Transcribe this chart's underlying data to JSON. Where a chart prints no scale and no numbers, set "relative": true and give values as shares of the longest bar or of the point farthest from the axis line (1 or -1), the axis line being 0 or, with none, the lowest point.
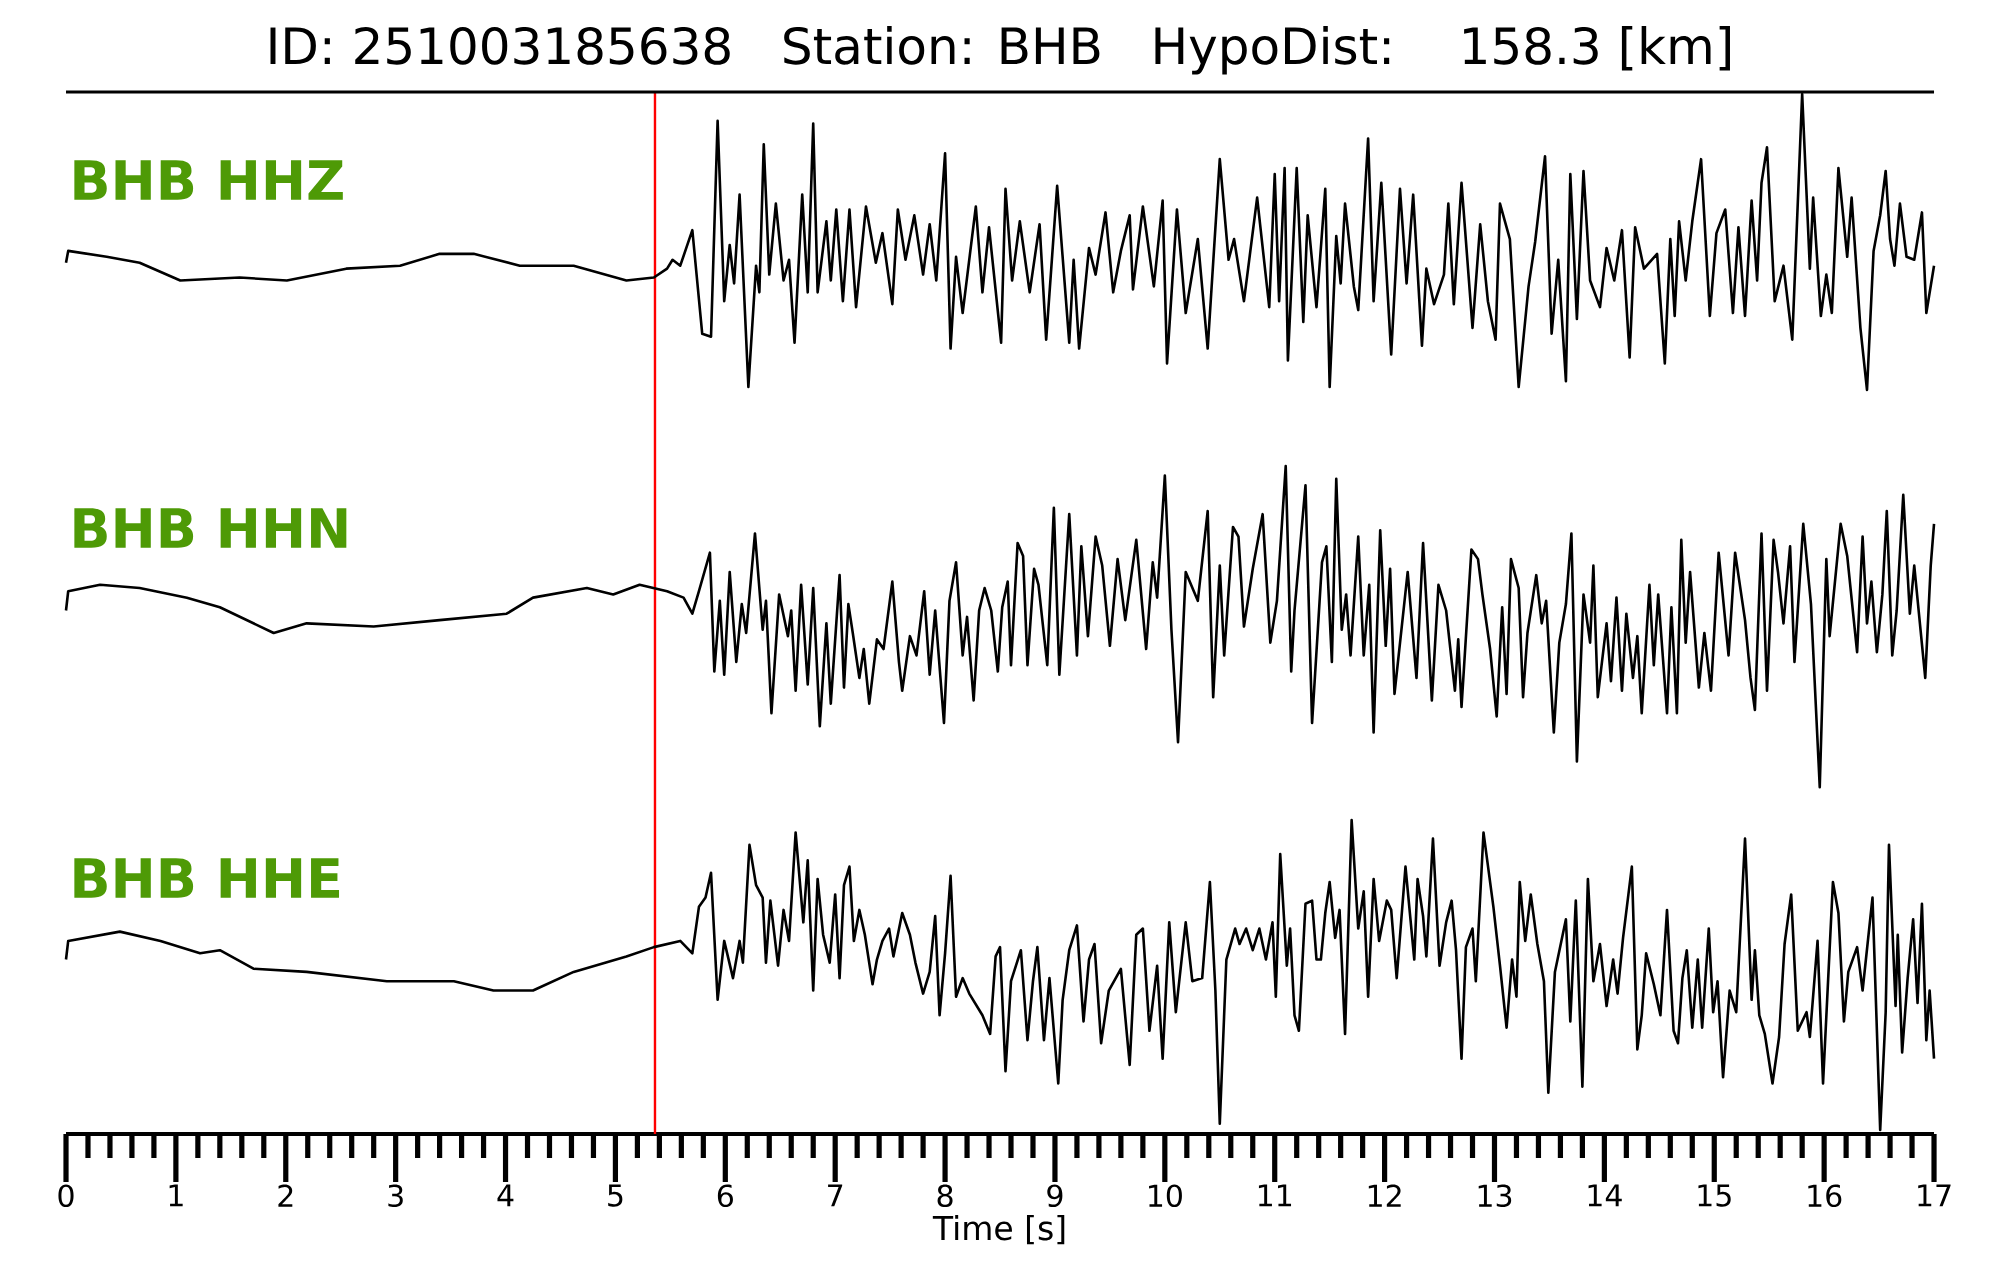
{
  "chart_data": [
    {
      "type": "line",
      "title": "ID: 251003185638   Station: BHB   HypoDist:   158.3 [km]",
      "relative": true,
      "xlim": [
        0,
        17
      ],
      "tick_labels": false,
      "ref_lines": [
        {
          "axis": "x",
          "value": 5.36,
          "color": "#ff0000"
        }
      ],
      "x": [
        0,
        0.02,
        0.37,
        0.67,
        1.04,
        1.58,
        2.01,
        2.55,
        3.04,
        3.4,
        3.71,
        4.13,
        4.62,
        5.1,
        5.35,
        5.47,
        5.52,
        5.59,
        5.7,
        5.79,
        5.87,
        5.93,
        5.99,
        6.04,
        6.08,
        6.13,
        6.21,
        6.28,
        6.31,
        6.35,
        6.4,
        6.46,
        6.53,
        6.58,
        6.63,
        6.7,
        6.75,
        6.8,
        6.84,
        6.92,
        6.96,
        7.01,
        7.07,
        7.13,
        7.19,
        7.28,
        7.37,
        7.43,
        7.52,
        7.57,
        7.64,
        7.72,
        7.8,
        7.86,
        7.92,
        8.0,
        8.05,
        8.1,
        8.16,
        8.28,
        8.34,
        8.4,
        8.51,
        8.55,
        8.61,
        8.68,
        8.77,
        8.86,
        8.92,
        9.02,
        9.13,
        9.17,
        9.22,
        9.31,
        9.37,
        9.46,
        9.53,
        9.6,
        9.68,
        9.71,
        9.8,
        9.9,
        9.98,
        10.02,
        10.11,
        10.19,
        10.3,
        10.39,
        10.5,
        10.58,
        10.63,
        10.72,
        10.84,
        10.95,
        11.0,
        11.04,
        11.09,
        11.12,
        11.2,
        11.26,
        11.3,
        11.38,
        11.46,
        11.5,
        11.56,
        11.6,
        11.64,
        11.72,
        11.76,
        11.85,
        11.9,
        11.97,
        12.06,
        12.14,
        12.2,
        12.26,
        12.34,
        12.38,
        12.45,
        12.54,
        12.58,
        12.63,
        12.7,
        12.8,
        12.87,
        12.94,
        13.01,
        13.05,
        13.14,
        13.22,
        13.31,
        13.37,
        13.46,
        13.52,
        13.58,
        13.65,
        13.69,
        13.75,
        13.81,
        13.87,
        13.96,
        14.02,
        14.09,
        14.16,
        14.23,
        14.28,
        14.36,
        14.48,
        14.55,
        14.6,
        14.64,
        14.68,
        14.74,
        14.8,
        14.88,
        14.96,
        15.02,
        15.1,
        15.17,
        15.22,
        15.28,
        15.34,
        15.39,
        15.43,
        15.48,
        15.55,
        15.63,
        15.71,
        15.8,
        15.87,
        15.9,
        15.97,
        16.02,
        16.07,
        16.13,
        16.21,
        16.25,
        16.33,
        16.39,
        16.45,
        16.51,
        16.56,
        16.6,
        16.64,
        16.69,
        16.75,
        16.82,
        16.89,
        16.93,
        17.0
      ],
      "series": [
        {
          "name": "BHB HHZ",
          "color": "#000000",
          "values": [
            0.43,
            0.47,
            0.45,
            0.43,
            0.37,
            0.38,
            0.37,
            0.41,
            0.42,
            0.46,
            0.46,
            0.42,
            0.42,
            0.37,
            0.38,
            0.41,
            0.44,
            0.42,
            0.54,
            0.19,
            0.18,
            0.91,
            0.3,
            0.49,
            0.36,
            0.66,
            0.01,
            0.42,
            0.33,
            0.83,
            0.39,
            0.63,
            0.37,
            0.44,
            0.16,
            0.66,
            0.33,
            0.9,
            0.33,
            0.57,
            0.37,
            0.61,
            0.3,
            0.61,
            0.28,
            0.62,
            0.43,
            0.53,
            0.29,
            0.61,
            0.44,
            0.59,
            0.39,
            0.56,
            0.37,
            0.8,
            0.14,
            0.45,
            0.26,
            0.62,
            0.33,
            0.55,
            0.16,
            0.68,
            0.37,
            0.57,
            0.33,
            0.56,
            0.17,
            0.69,
            0.16,
            0.44,
            0.14,
            0.48,
            0.39,
            0.6,
            0.33,
            0.47,
            0.59,
            0.34,
            0.62,
            0.35,
            0.64,
            0.09,
            0.61,
            0.26,
            0.51,
            0.14,
            0.78,
            0.44,
            0.51,
            0.3,
            0.65,
            0.28,
            0.73,
            0.3,
            0.75,
            0.1,
            0.75,
            0.23,
            0.59,
            0.28,
            0.68,
            0.01,
            0.52,
            0.36,
            0.63,
            0.35,
            0.27,
            0.85,
            0.3,
            0.7,
            0.12,
            0.68,
            0.36,
            0.66,
            0.15,
            0.41,
            0.29,
            0.39,
            0.63,
            0.29,
            0.7,
            0.21,
            0.56,
            0.3,
            0.17,
            0.63,
            0.51,
            0.01,
            0.35,
            0.5,
            0.79,
            0.19,
            0.44,
            0.03,
            0.73,
            0.24,
            0.74,
            0.37,
            0.28,
            0.48,
            0.37,
            0.54,
            0.11,
            0.55,
            0.41,
            0.46,
            0.09,
            0.51,
            0.25,
            0.57,
            0.37,
            0.57,
            0.78,
            0.25,
            0.53,
            0.61,
            0.26,
            0.55,
            0.25,
            0.64,
            0.37,
            0.7,
            0.82,
            0.3,
            0.42,
            0.17,
            1.0,
            0.41,
            0.65,
            0.25,
            0.39,
            0.26,
            0.75,
            0.45,
            0.65,
            0.21,
            0.0,
            0.47,
            0.59,
            0.74,
            0.51,
            0.42,
            0.63,
            0.45,
            0.44,
            0.6,
            0.26,
            0.42
          ]
        }
      ]
    },
    {
      "type": "line",
      "relative": true,
      "xlim": [
        0,
        17
      ],
      "tick_labels": false,
      "ref_lines": [
        {
          "axis": "x",
          "value": 5.36,
          "color": "#ff0000"
        }
      ],
      "x": [
        0,
        0.02,
        0.31,
        0.67,
        1.1,
        1.4,
        1.89,
        2.19,
        2.8,
        3.4,
        4.01,
        4.25,
        4.74,
        4.98,
        5.22,
        5.47,
        5.62,
        5.7,
        5.76,
        5.86,
        5.9,
        5.95,
        5.99,
        6.04,
        6.1,
        6.15,
        6.19,
        6.27,
        6.34,
        6.37,
        6.42,
        6.49,
        6.57,
        6.6,
        6.64,
        6.69,
        6.75,
        6.8,
        6.86,
        6.92,
        6.96,
        7.04,
        7.08,
        7.12,
        7.16,
        7.22,
        7.26,
        7.31,
        7.38,
        7.44,
        7.52,
        7.58,
        7.61,
        7.68,
        7.74,
        7.81,
        7.86,
        7.91,
        7.99,
        8.04,
        8.1,
        8.16,
        8.2,
        8.26,
        8.31,
        8.36,
        8.42,
        8.48,
        8.52,
        8.57,
        8.6,
        8.66,
        8.71,
        8.75,
        8.81,
        8.85,
        8.93,
        8.99,
        9.04,
        9.13,
        9.2,
        9.24,
        9.3,
        9.37,
        9.43,
        9.5,
        9.57,
        9.64,
        9.74,
        9.83,
        9.89,
        9.93,
        10.0,
        10.06,
        10.12,
        10.19,
        10.3,
        10.39,
        10.44,
        10.5,
        10.54,
        10.62,
        10.67,
        10.72,
        10.8,
        10.89,
        10.96,
        11.02,
        11.1,
        11.15,
        11.18,
        11.28,
        11.34,
        11.43,
        11.47,
        11.52,
        11.56,
        11.61,
        11.65,
        11.69,
        11.76,
        11.81,
        11.86,
        11.9,
        11.96,
        12.01,
        12.05,
        12.09,
        12.21,
        12.29,
        12.35,
        12.43,
        12.49,
        12.56,
        12.64,
        12.67,
        12.7,
        12.79,
        12.85,
        12.89,
        12.96,
        13.02,
        13.07,
        13.11,
        13.15,
        13.22,
        13.26,
        13.3,
        13.38,
        13.43,
        13.47,
        13.54,
        13.59,
        13.65,
        13.7,
        13.75,
        13.81,
        13.87,
        13.9,
        13.94,
        14.02,
        14.06,
        14.11,
        14.16,
        14.2,
        14.26,
        14.3,
        14.34,
        14.41,
        14.45,
        14.49,
        14.57,
        14.61,
        14.66,
        14.7,
        14.74,
        14.78,
        14.86,
        14.91,
        14.97,
        15.04,
        15.13,
        15.19,
        15.28,
        15.33,
        15.37,
        15.43,
        15.48,
        15.54,
        15.58,
        15.63,
        15.69,
        15.73,
        15.81,
        15.88,
        15.96,
        16.02,
        16.05,
        16.15,
        16.21,
        16.3,
        16.35,
        16.39,
        16.43,
        16.48,
        16.53,
        16.57,
        16.62,
        16.66,
        16.72,
        16.78,
        16.82,
        16.92,
        16.97,
        17.0
      ],
      "series": [
        {
          "name": "BHB HHN",
          "color": "#000000",
          "values": [
            0.55,
            0.61,
            0.63,
            0.62,
            0.59,
            0.56,
            0.48,
            0.51,
            0.5,
            0.52,
            0.54,
            0.59,
            0.62,
            0.6,
            0.63,
            0.61,
            0.59,
            0.54,
            0.61,
            0.73,
            0.36,
            0.58,
            0.35,
            0.67,
            0.39,
            0.57,
            0.48,
            0.79,
            0.49,
            0.58,
            0.23,
            0.6,
            0.47,
            0.55,
            0.3,
            0.63,
            0.32,
            0.62,
            0.19,
            0.51,
            0.26,
            0.66,
            0.31,
            0.57,
            0.48,
            0.34,
            0.43,
            0.26,
            0.46,
            0.43,
            0.64,
            0.39,
            0.3,
            0.47,
            0.41,
            0.61,
            0.35,
            0.55,
            0.2,
            0.58,
            0.7,
            0.41,
            0.53,
            0.27,
            0.55,
            0.62,
            0.55,
            0.36,
            0.56,
            0.64,
            0.38,
            0.76,
            0.72,
            0.38,
            0.68,
            0.63,
            0.38,
            0.87,
            0.35,
            0.85,
            0.41,
            0.75,
            0.47,
            0.78,
            0.69,
            0.44,
            0.71,
            0.52,
            0.77,
            0.43,
            0.7,
            0.59,
            0.97,
            0.49,
            0.14,
            0.67,
            0.58,
            0.86,
            0.28,
            0.69,
            0.41,
            0.81,
            0.78,
            0.5,
            0.68,
            0.85,
            0.45,
            0.58,
            1.0,
            0.36,
            0.55,
            0.94,
            0.2,
            0.7,
            0.75,
            0.39,
            0.96,
            0.49,
            0.6,
            0.41,
            0.78,
            0.41,
            0.63,
            0.17,
            0.8,
            0.44,
            0.68,
            0.29,
            0.67,
            0.34,
            0.76,
            0.27,
            0.63,
            0.55,
            0.3,
            0.46,
            0.25,
            0.74,
            0.71,
            0.6,
            0.43,
            0.22,
            0.56,
            0.29,
            0.71,
            0.62,
            0.28,
            0.48,
            0.66,
            0.51,
            0.58,
            0.17,
            0.45,
            0.57,
            0.79,
            0.08,
            0.6,
            0.45,
            0.69,
            0.28,
            0.51,
            0.33,
            0.59,
            0.3,
            0.54,
            0.34,
            0.47,
            0.23,
            0.63,
            0.38,
            0.6,
            0.23,
            0.56,
            0.23,
            0.77,
            0.45,
            0.67,
            0.31,
            0.48,
            0.3,
            0.73,
            0.41,
            0.73,
            0.52,
            0.34,
            0.24,
            0.79,
            0.3,
            0.77,
            0.67,
            0.51,
            0.75,
            0.39,
            0.82,
            0.57,
            0.0,
            0.71,
            0.47,
            0.82,
            0.72,
            0.42,
            0.78,
            0.51,
            0.64,
            0.42,
            0.6,
            0.86,
            0.41,
            0.55,
            0.91,
            0.54,
            0.69,
            0.34,
            0.69,
            0.82
          ]
        }
      ]
    },
    {
      "type": "line",
      "xlabel": "Time [s]",
      "relative": true,
      "xlim": [
        0,
        17
      ],
      "tick_labels": "x",
      "xticks": [
        0,
        {
          "value": 0.2,
          "label": null
        },
        {
          "value": 0.4,
          "label": null
        },
        {
          "value": 0.6,
          "label": null
        },
        {
          "value": 0.8,
          "label": null
        },
        1,
        {
          "value": 1.2,
          "label": null
        },
        {
          "value": 1.4,
          "label": null
        },
        {
          "value": 1.6,
          "label": null
        },
        {
          "value": 1.8,
          "label": null
        },
        2,
        {
          "value": 2.2,
          "label": null
        },
        {
          "value": 2.4,
          "label": null
        },
        {
          "value": 2.6,
          "label": null
        },
        {
          "value": 2.8,
          "label": null
        },
        3,
        {
          "value": 3.2,
          "label": null
        },
        {
          "value": 3.4,
          "label": null
        },
        {
          "value": 3.6,
          "label": null
        },
        {
          "value": 3.8,
          "label": null
        },
        4,
        {
          "value": 4.2,
          "label": null
        },
        {
          "value": 4.4,
          "label": null
        },
        {
          "value": 4.6,
          "label": null
        },
        {
          "value": 4.8,
          "label": null
        },
        5,
        {
          "value": 5.2,
          "label": null
        },
        {
          "value": 5.4,
          "label": null
        },
        {
          "value": 5.6,
          "label": null
        },
        {
          "value": 5.8,
          "label": null
        },
        6,
        {
          "value": 6.2,
          "label": null
        },
        {
          "value": 6.4,
          "label": null
        },
        {
          "value": 6.6,
          "label": null
        },
        {
          "value": 6.8,
          "label": null
        },
        7,
        {
          "value": 7.2,
          "label": null
        },
        {
          "value": 7.4,
          "label": null
        },
        {
          "value": 7.6,
          "label": null
        },
        {
          "value": 7.8,
          "label": null
        },
        8,
        {
          "value": 8.2,
          "label": null
        },
        {
          "value": 8.4,
          "label": null
        },
        {
          "value": 8.6,
          "label": null
        },
        {
          "value": 8.8,
          "label": null
        },
        9,
        {
          "value": 9.2,
          "label": null
        },
        {
          "value": 9.4,
          "label": null
        },
        {
          "value": 9.6,
          "label": null
        },
        {
          "value": 9.8,
          "label": null
        },
        10,
        {
          "value": 10.2,
          "label": null
        },
        {
          "value": 10.4,
          "label": null
        },
        {
          "value": 10.6,
          "label": null
        },
        {
          "value": 10.8,
          "label": null
        },
        11,
        {
          "value": 11.2,
          "label": null
        },
        {
          "value": 11.4,
          "label": null
        },
        {
          "value": 11.6,
          "label": null
        },
        {
          "value": 11.8,
          "label": null
        },
        12,
        {
          "value": 12.2,
          "label": null
        },
        {
          "value": 12.4,
          "label": null
        },
        {
          "value": 12.6,
          "label": null
        },
        {
          "value": 12.8,
          "label": null
        },
        13,
        {
          "value": 13.2,
          "label": null
        },
        {
          "value": 13.4,
          "label": null
        },
        {
          "value": 13.6,
          "label": null
        },
        {
          "value": 13.8,
          "label": null
        },
        14,
        {
          "value": 14.2,
          "label": null
        },
        {
          "value": 14.4,
          "label": null
        },
        {
          "value": 14.6,
          "label": null
        },
        {
          "value": 14.8,
          "label": null
        },
        15,
        {
          "value": 15.2,
          "label": null
        },
        {
          "value": 15.4,
          "label": null
        },
        {
          "value": 15.6,
          "label": null
        },
        {
          "value": 15.8,
          "label": null
        },
        16,
        {
          "value": 16.2,
          "label": null
        },
        {
          "value": 16.4,
          "label": null
        },
        {
          "value": 16.6,
          "label": null
        },
        {
          "value": 16.8,
          "label": null
        },
        17
      ],
      "ref_lines": [
        {
          "axis": "x",
          "value": 5.36,
          "color": "#ff0000"
        }
      ],
      "x": [
        0,
        0.02,
        0.49,
        0.86,
        1.22,
        1.4,
        1.71,
        2.19,
        2.92,
        3.53,
        3.89,
        4.25,
        4.62,
        5.1,
        5.35,
        5.59,
        5.7,
        5.76,
        5.82,
        5.87,
        5.93,
        5.99,
        6.07,
        6.13,
        6.16,
        6.22,
        6.28,
        6.34,
        6.37,
        6.41,
        6.48,
        6.53,
        6.58,
        6.64,
        6.71,
        6.75,
        6.8,
        6.84,
        6.89,
        6.95,
        7.0,
        7.04,
        7.08,
        7.13,
        7.17,
        7.22,
        7.27,
        7.34,
        7.38,
        7.43,
        7.49,
        7.53,
        7.61,
        7.68,
        7.73,
        7.8,
        7.86,
        7.91,
        7.95,
        8.0,
        8.05,
        8.1,
        8.16,
        8.22,
        8.34,
        8.41,
        8.46,
        8.5,
        8.55,
        8.6,
        8.69,
        8.75,
        8.8,
        8.84,
        8.9,
        8.95,
        9.03,
        9.07,
        9.13,
        9.2,
        9.26,
        9.31,
        9.36,
        9.42,
        9.49,
        9.6,
        9.68,
        9.74,
        9.8,
        9.86,
        9.93,
        9.98,
        10.04,
        10.1,
        10.19,
        10.25,
        10.34,
        10.41,
        10.46,
        10.5,
        10.56,
        10.64,
        10.68,
        10.74,
        10.8,
        10.86,
        10.92,
        10.98,
        11.01,
        11.05,
        11.11,
        11.14,
        11.18,
        11.22,
        11.28,
        11.34,
        11.38,
        11.42,
        11.46,
        11.5,
        11.55,
        11.59,
        11.64,
        11.7,
        11.76,
        11.81,
        11.85,
        11.9,
        11.95,
        12.02,
        12.06,
        12.11,
        12.19,
        12.27,
        12.3,
        12.35,
        12.38,
        12.44,
        12.5,
        12.56,
        12.61,
        12.65,
        12.7,
        12.74,
        12.8,
        12.83,
        12.9,
        12.99,
        13.05,
        13.11,
        13.16,
        13.2,
        13.23,
        13.28,
        13.33,
        13.39,
        13.45,
        13.49,
        13.55,
        13.65,
        13.69,
        13.74,
        13.8,
        13.85,
        13.9,
        13.96,
        14.02,
        14.08,
        14.12,
        14.17,
        14.25,
        14.3,
        14.34,
        14.38,
        14.45,
        14.51,
        14.57,
        14.63,
        14.67,
        14.71,
        14.75,
        14.8,
        14.85,
        14.89,
        14.95,
        14.99,
        15.03,
        15.08,
        15.14,
        15.2,
        15.28,
        15.34,
        15.37,
        15.41,
        15.46,
        15.53,
        15.59,
        15.64,
        15.7,
        15.76,
        15.84,
        15.87,
        15.94,
        15.99,
        16.08,
        16.13,
        16.18,
        16.22,
        16.3,
        16.35,
        16.44,
        16.51,
        16.56,
        16.59,
        16.65,
        16.67,
        16.71,
        16.76,
        16.81,
        16.85,
        16.89,
        16.93,
        16.96,
        17.0
      ],
      "series": [
        {
          "name": "BHB HHE",
          "color": "#000000",
          "values": [
            0.55,
            0.61,
            0.64,
            0.61,
            0.57,
            0.58,
            0.52,
            0.51,
            0.48,
            0.48,
            0.45,
            0.45,
            0.51,
            0.56,
            0.59,
            0.61,
            0.57,
            0.72,
            0.75,
            0.83,
            0.42,
            0.61,
            0.49,
            0.61,
            0.54,
            0.92,
            0.79,
            0.75,
            0.54,
            0.74,
            0.53,
            0.71,
            0.61,
            0.96,
            0.67,
            0.87,
            0.45,
            0.81,
            0.63,
            0.54,
            0.76,
            0.49,
            0.79,
            0.85,
            0.61,
            0.71,
            0.63,
            0.47,
            0.55,
            0.61,
            0.65,
            0.56,
            0.7,
            0.63,
            0.54,
            0.44,
            0.51,
            0.69,
            0.37,
            0.57,
            0.82,
            0.43,
            0.49,
            0.44,
            0.37,
            0.31,
            0.56,
            0.59,
            0.19,
            0.48,
            0.58,
            0.29,
            0.48,
            0.59,
            0.29,
            0.49,
            0.15,
            0.42,
            0.58,
            0.66,
            0.35,
            0.55,
            0.6,
            0.28,
            0.45,
            0.52,
            0.21,
            0.63,
            0.65,
            0.32,
            0.53,
            0.23,
            0.67,
            0.38,
            0.67,
            0.48,
            0.49,
            0.8,
            0.45,
            0.02,
            0.55,
            0.65,
            0.6,
            0.65,
            0.58,
            0.65,
            0.55,
            0.67,
            0.43,
            0.89,
            0.53,
            0.65,
            0.37,
            0.32,
            0.73,
            0.74,
            0.55,
            0.55,
            0.7,
            0.8,
            0.62,
            0.71,
            0.31,
            1.0,
            0.65,
            0.77,
            0.43,
            0.81,
            0.61,
            0.74,
            0.71,
            0.49,
            0.85,
            0.55,
            0.81,
            0.69,
            0.56,
            0.94,
            0.53,
            0.67,
            0.74,
            0.58,
            0.23,
            0.59,
            0.65,
            0.48,
            0.96,
            0.72,
            0.53,
            0.33,
            0.55,
            0.43,
            0.8,
            0.61,
            0.76,
            0.6,
            0.48,
            0.12,
            0.51,
            0.68,
            0.35,
            0.74,
            0.14,
            0.81,
            0.48,
            0.6,
            0.4,
            0.55,
            0.44,
            0.62,
            0.85,
            0.26,
            0.37,
            0.57,
            0.47,
            0.37,
            0.71,
            0.32,
            0.28,
            0.49,
            0.58,
            0.33,
            0.55,
            0.33,
            0.65,
            0.38,
            0.48,
            0.17,
            0.45,
            0.38,
            0.94,
            0.42,
            0.58,
            0.37,
            0.31,
            0.15,
            0.3,
            0.6,
            0.76,
            0.32,
            0.38,
            0.3,
            0.61,
            0.15,
            0.8,
            0.7,
            0.35,
            0.51,
            0.59,
            0.45,
            0.75,
            0.0,
            0.38,
            0.92,
            0.4,
            0.63,
            0.25,
            0.49,
            0.68,
            0.41,
            0.73,
            0.29,
            0.45,
            0.23
          ]
        }
      ]
    }
  ]
}
